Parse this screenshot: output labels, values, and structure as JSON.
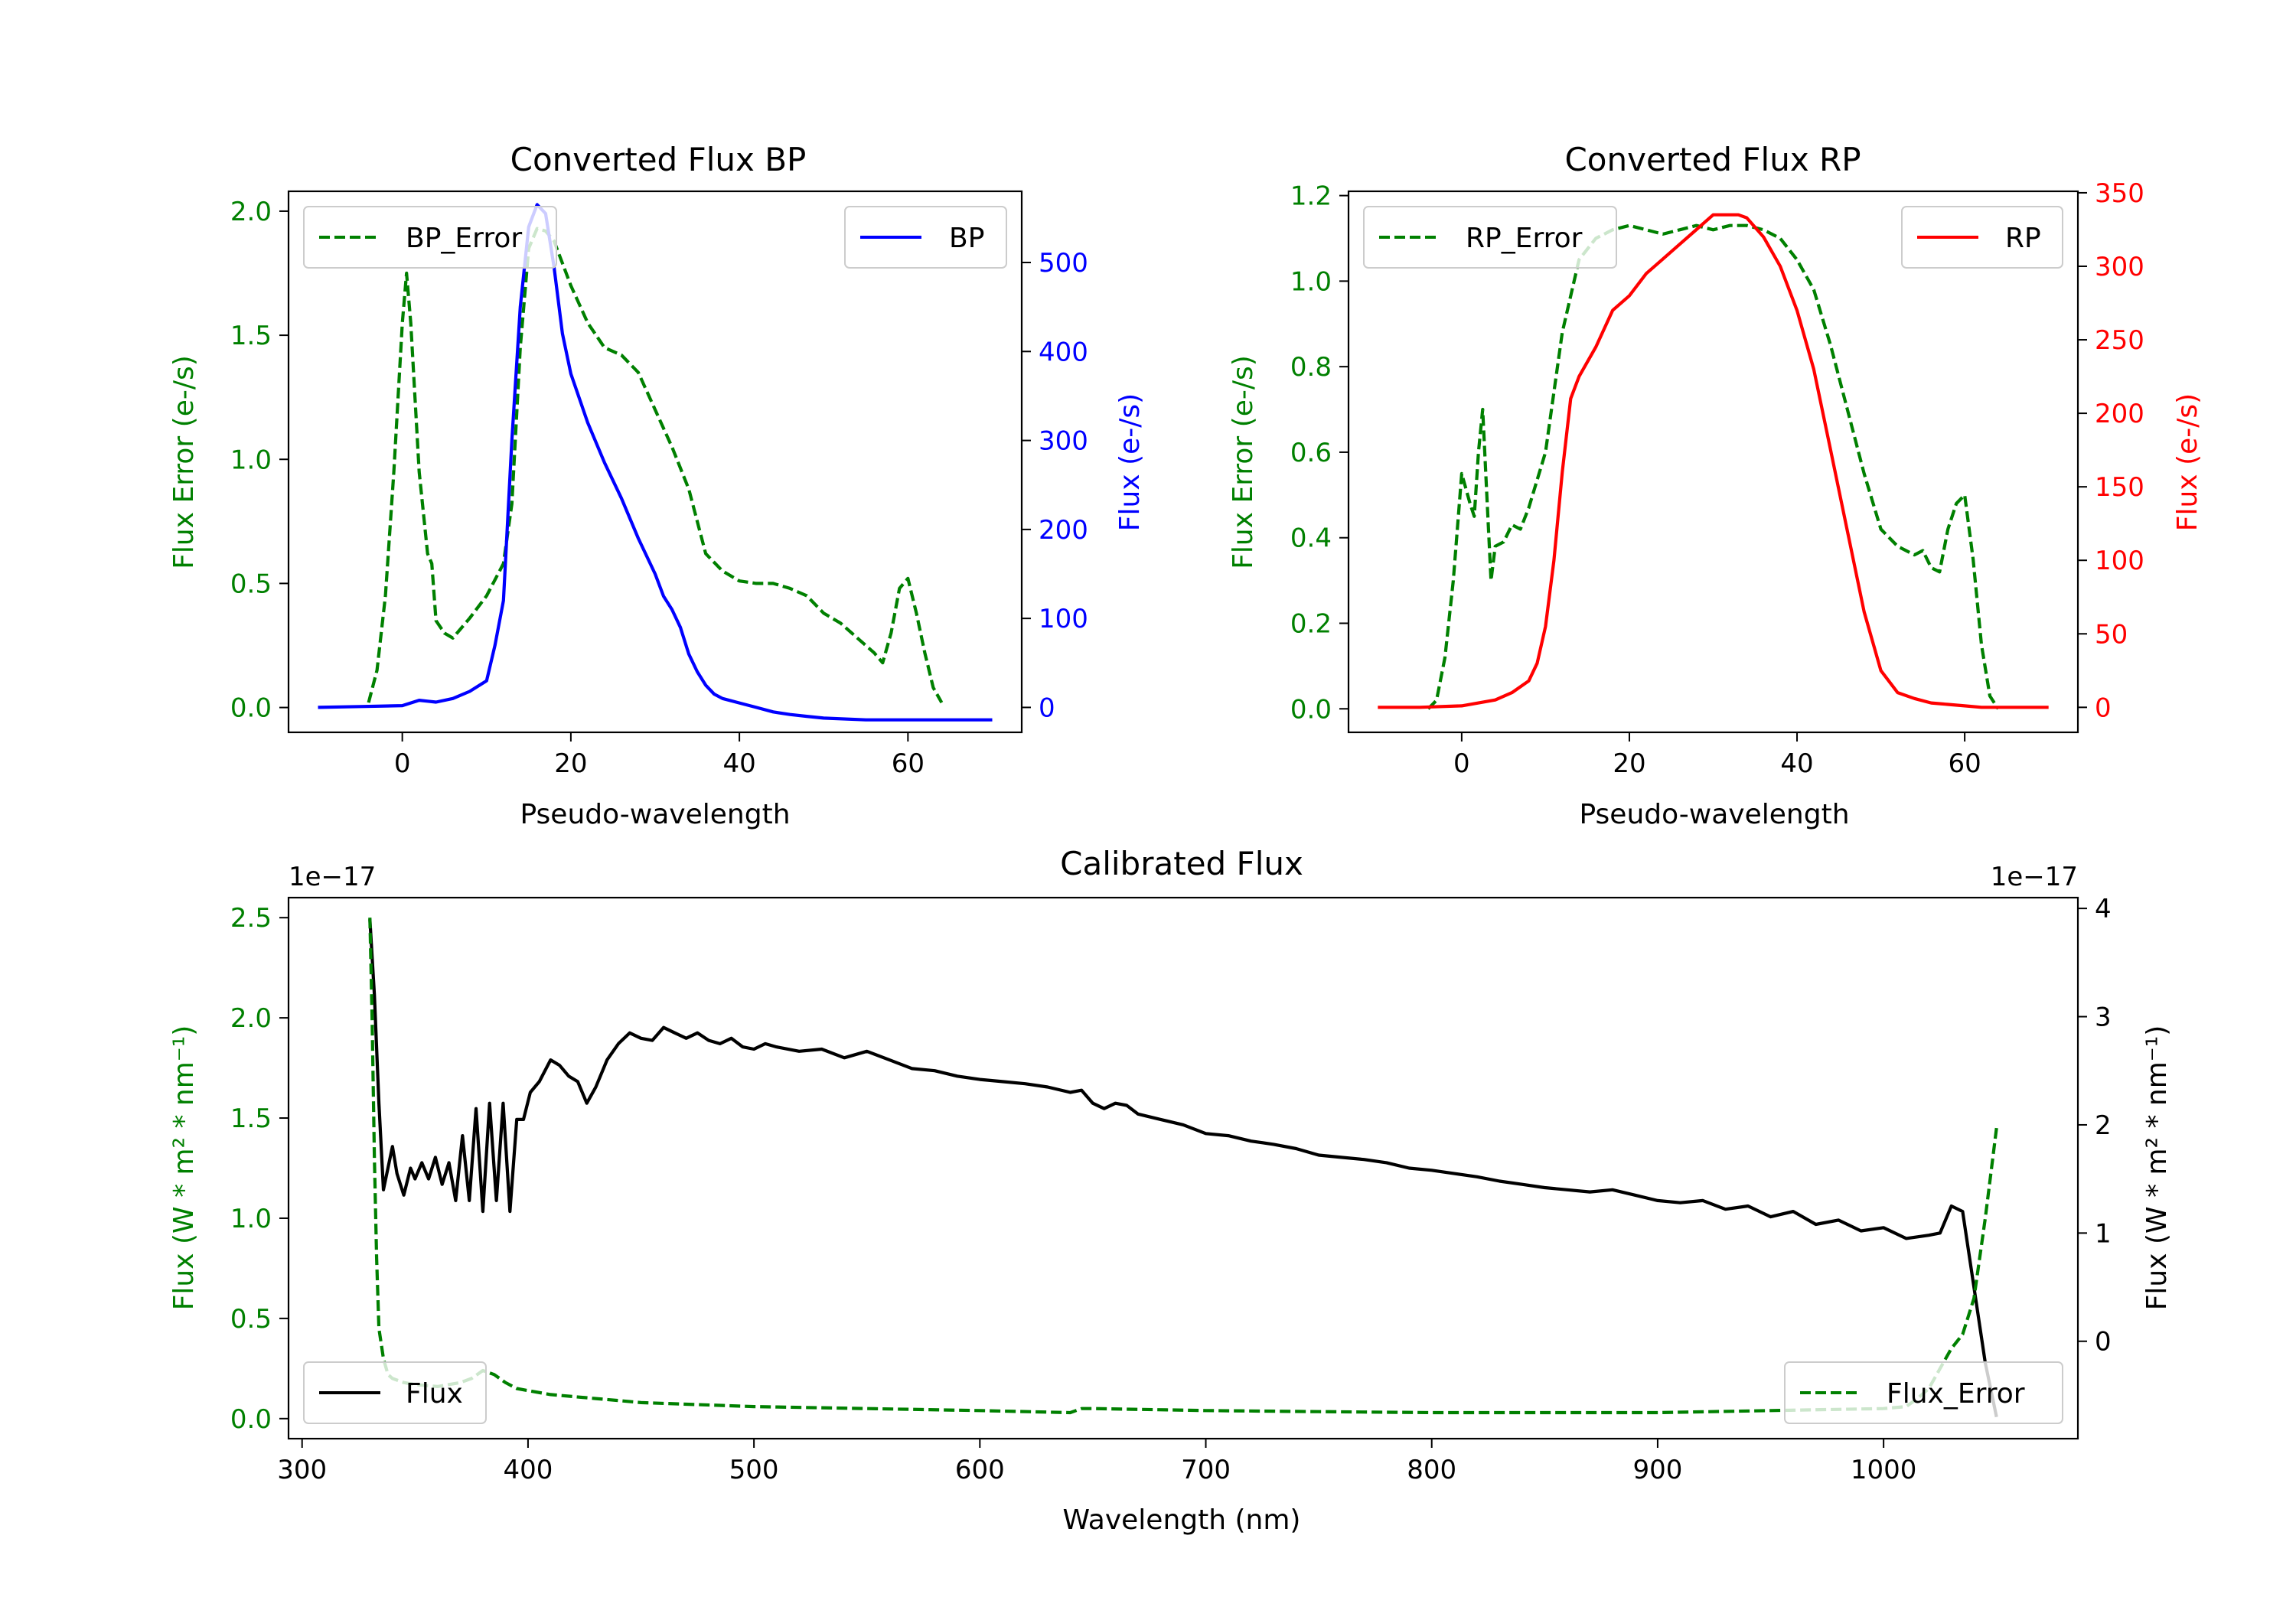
{
  "colors": {
    "green": "#008000",
    "blue": "#0000ff",
    "red": "#ff0000",
    "black": "#000000"
  },
  "chart_data": [
    {
      "id": "bp",
      "type": "line",
      "title": "Converted Flux BP",
      "xlabel": "Pseudo-wavelength",
      "ylabel_left": "Flux Error (e-/s)",
      "ylabel_right": "Flux (e-/s)",
      "xlim": [
        -13.5,
        73.5
      ],
      "ylim_left": [
        -0.1,
        2.08
      ],
      "ylim_right": [
        -28,
        580
      ],
      "xticks": [
        "0",
        "20",
        "40",
        "60"
      ],
      "yticks_left": [
        "0.0",
        "0.5",
        "1.0",
        "1.5",
        "2.0"
      ],
      "yticks_right": [
        "0",
        "100",
        "200",
        "300",
        "400",
        "500"
      ],
      "legend_left": "BP_Error",
      "legend_right": "BP",
      "series": [
        {
          "name": "BP_Error",
          "axis": "left",
          "style": "dashed",
          "color": "#008000",
          "x": [
            -4,
            -3,
            -2,
            -1,
            0,
            0.5,
            1,
            2,
            3,
            3.5,
            4,
            5,
            6,
            8,
            10,
            12,
            13,
            14,
            15,
            16,
            17,
            18,
            20,
            22,
            24,
            26,
            28,
            30,
            32,
            34,
            36,
            38,
            40,
            42,
            44,
            46,
            48,
            50,
            52,
            54,
            56,
            57,
            58,
            59,
            60,
            61,
            62,
            63,
            64
          ],
          "y": [
            0.02,
            0.15,
            0.45,
            0.95,
            1.55,
            1.75,
            1.55,
            0.95,
            0.62,
            0.58,
            0.35,
            0.3,
            0.28,
            0.36,
            0.45,
            0.58,
            0.82,
            1.45,
            1.85,
            1.93,
            1.92,
            1.88,
            1.7,
            1.55,
            1.45,
            1.42,
            1.35,
            1.2,
            1.05,
            0.88,
            0.62,
            0.55,
            0.51,
            0.5,
            0.5,
            0.48,
            0.45,
            0.38,
            0.34,
            0.28,
            0.22,
            0.18,
            0.3,
            0.48,
            0.52,
            0.38,
            0.22,
            0.08,
            0.02
          ]
        },
        {
          "name": "BP",
          "axis": "right",
          "style": "solid",
          "color": "#0000ff",
          "x": [
            -10,
            -5,
            0,
            1,
            2,
            3,
            4,
            6,
            8,
            10,
            11,
            12,
            13,
            14,
            15,
            16,
            17,
            18,
            19,
            20,
            22,
            24,
            26,
            28,
            30,
            31,
            32,
            33,
            34,
            35,
            36,
            37,
            38,
            40,
            42,
            44,
            46,
            48,
            50,
            55,
            60,
            65,
            70
          ],
          "y": [
            0,
            1,
            2,
            5,
            8,
            7,
            6,
            10,
            18,
            30,
            70,
            120,
            300,
            450,
            540,
            565,
            555,
            495,
            420,
            375,
            320,
            275,
            235,
            190,
            150,
            125,
            110,
            90,
            60,
            40,
            25,
            15,
            10,
            5,
            0,
            -5,
            -8,
            -10,
            -12,
            -14,
            -14,
            -14,
            -14
          ]
        }
      ]
    },
    {
      "id": "rp",
      "type": "line",
      "title": "Converted Flux RP",
      "xlabel": "Pseudo-wavelength",
      "ylabel_left": "Flux Error (e-/s)",
      "ylabel_right": "Flux (e-/s)",
      "xlim": [
        -13.5,
        73.5
      ],
      "ylim_left": [
        -0.055,
        1.21
      ],
      "ylim_right": [
        -17,
        351
      ],
      "xticks": [
        "0",
        "20",
        "40",
        "60"
      ],
      "yticks_left": [
        "0.0",
        "0.2",
        "0.4",
        "0.6",
        "0.8",
        "1.0",
        "1.2"
      ],
      "yticks_right": [
        "0",
        "50",
        "100",
        "150",
        "200",
        "250",
        "300",
        "350"
      ],
      "legend_left": "RP_Error",
      "legend_right": "RP",
      "series": [
        {
          "name": "RP_Error",
          "axis": "left",
          "style": "dashed",
          "color": "#008000",
          "x": [
            -4,
            -3,
            -2,
            -1,
            0,
            1,
            1.5,
            2,
            2.5,
            3,
            3.5,
            4,
            5,
            6,
            7,
            8,
            10,
            12,
            14,
            16,
            18,
            20,
            22,
            24,
            26,
            28,
            30,
            32,
            34,
            36,
            38,
            40,
            42,
            44,
            46,
            48,
            50,
            52,
            54,
            55,
            56,
            57,
            58,
            59,
            60,
            61,
            62,
            63,
            64
          ],
          "y": [
            0,
            0.02,
            0.12,
            0.3,
            0.55,
            0.48,
            0.45,
            0.6,
            0.7,
            0.5,
            0.3,
            0.38,
            0.39,
            0.43,
            0.42,
            0.47,
            0.6,
            0.88,
            1.05,
            1.1,
            1.12,
            1.13,
            1.12,
            1.11,
            1.12,
            1.13,
            1.12,
            1.13,
            1.13,
            1.12,
            1.1,
            1.05,
            0.98,
            0.85,
            0.7,
            0.55,
            0.42,
            0.38,
            0.36,
            0.37,
            0.33,
            0.32,
            0.42,
            0.48,
            0.5,
            0.35,
            0.15,
            0.03,
            0
          ]
        },
        {
          "name": "RP",
          "axis": "right",
          "style": "solid",
          "color": "#ff0000",
          "x": [
            -10,
            -5,
            0,
            2,
            4,
            6,
            8,
            9,
            10,
            11,
            12,
            13,
            14,
            16,
            18,
            20,
            22,
            24,
            26,
            28,
            30,
            32,
            33,
            34,
            36,
            38,
            40,
            42,
            44,
            46,
            48,
            50,
            52,
            54,
            56,
            58,
            60,
            62,
            65,
            70
          ],
          "y": [
            0,
            0,
            1,
            3,
            5,
            10,
            18,
            30,
            55,
            100,
            160,
            210,
            225,
            245,
            270,
            280,
            295,
            305,
            315,
            325,
            335,
            335,
            335,
            333,
            320,
            300,
            270,
            230,
            175,
            120,
            65,
            25,
            10,
            6,
            3,
            2,
            1,
            0,
            0,
            0
          ]
        }
      ]
    },
    {
      "id": "calibrated",
      "type": "line",
      "title": "Calibrated Flux",
      "xlabel": "Wavelength (nm)",
      "ylabel_left": "Flux (W * m² * nm⁻¹)",
      "ylabel_right": "Flux (W * m² * nm⁻¹)",
      "offset_left": "1e−17",
      "offset_right": "1e−17",
      "xlim": [
        294,
        1086
      ],
      "ylim_left": [
        -0.1,
        2.6
      ],
      "ylim_right": [
        -0.9,
        4.1
      ],
      "xticks": [
        "300",
        "400",
        "500",
        "600",
        "700",
        "800",
        "900",
        "1000"
      ],
      "yticks_left": [
        "0.0",
        "0.5",
        "1.0",
        "1.5",
        "2.0",
        "2.5"
      ],
      "yticks_right": [
        "0",
        "1",
        "2",
        "3",
        "4"
      ],
      "legend_left": "Flux",
      "legend_right": "Flux_Error",
      "series": [
        {
          "name": "Flux",
          "axis": "right",
          "style": "solid",
          "color": "#000000",
          "x": [
            330,
            332,
            334,
            336,
            338,
            340,
            342,
            345,
            348,
            350,
            353,
            356,
            359,
            362,
            365,
            368,
            371,
            374,
            377,
            380,
            383,
            386,
            389,
            392,
            395,
            398,
            401,
            405,
            410,
            414,
            418,
            422,
            426,
            430,
            435,
            440,
            445,
            450,
            455,
            460,
            465,
            470,
            475,
            480,
            485,
            490,
            495,
            500,
            505,
            510,
            520,
            530,
            540,
            550,
            560,
            570,
            580,
            590,
            600,
            610,
            620,
            630,
            640,
            645,
            650,
            655,
            660,
            665,
            670,
            680,
            690,
            700,
            710,
            720,
            730,
            740,
            750,
            760,
            770,
            780,
            790,
            800,
            810,
            820,
            830,
            840,
            850,
            860,
            870,
            880,
            890,
            900,
            910,
            920,
            930,
            940,
            950,
            960,
            970,
            980,
            990,
            1000,
            1010,
            1020,
            1025,
            1030,
            1035,
            1040,
            1045,
            1050
          ],
          "y": [
            3.9,
            3.2,
            2.2,
            1.4,
            1.6,
            1.8,
            1.55,
            1.35,
            1.6,
            1.5,
            1.65,
            1.5,
            1.7,
            1.45,
            1.65,
            1.3,
            1.9,
            1.3,
            2.15,
            1.2,
            2.2,
            1.3,
            2.2,
            1.2,
            2.05,
            2.05,
            2.3,
            2.4,
            2.6,
            2.55,
            2.45,
            2.4,
            2.2,
            2.35,
            2.6,
            2.75,
            2.85,
            2.8,
            2.78,
            2.9,
            2.85,
            2.8,
            2.85,
            2.78,
            2.75,
            2.8,
            2.72,
            2.7,
            2.75,
            2.72,
            2.68,
            2.7,
            2.62,
            2.68,
            2.6,
            2.52,
            2.5,
            2.45,
            2.42,
            2.4,
            2.38,
            2.35,
            2.3,
            2.32,
            2.2,
            2.15,
            2.2,
            2.18,
            2.1,
            2.05,
            2.0,
            1.92,
            1.9,
            1.85,
            1.82,
            1.78,
            1.72,
            1.7,
            1.68,
            1.65,
            1.6,
            1.58,
            1.55,
            1.52,
            1.48,
            1.45,
            1.42,
            1.4,
            1.38,
            1.4,
            1.35,
            1.3,
            1.28,
            1.3,
            1.22,
            1.25,
            1.15,
            1.2,
            1.08,
            1.12,
            1.02,
            1.05,
            0.95,
            0.98,
            1.0,
            1.25,
            1.2,
            0.5,
            -0.2,
            -0.7
          ]
        },
        {
          "name": "Flux_Error",
          "axis": "left",
          "style": "dashed",
          "color": "#008000",
          "x": [
            330,
            331,
            332,
            333,
            334,
            336,
            338,
            340,
            345,
            350,
            360,
            370,
            375,
            380,
            385,
            390,
            395,
            400,
            410,
            420,
            430,
            440,
            450,
            500,
            550,
            600,
            640,
            645,
            650,
            700,
            750,
            800,
            850,
            900,
            950,
            1000,
            1010,
            1015,
            1020,
            1025,
            1030,
            1035,
            1040,
            1045,
            1050
          ],
          "y": [
            2.5,
            2.0,
            1.3,
            0.8,
            0.45,
            0.3,
            0.22,
            0.2,
            0.18,
            0.17,
            0.16,
            0.18,
            0.2,
            0.24,
            0.22,
            0.18,
            0.15,
            0.14,
            0.12,
            0.11,
            0.1,
            0.09,
            0.08,
            0.06,
            0.05,
            0.04,
            0.03,
            0.05,
            0.05,
            0.04,
            0.035,
            0.03,
            0.03,
            0.03,
            0.04,
            0.05,
            0.06,
            0.1,
            0.15,
            0.25,
            0.35,
            0.42,
            0.6,
            1.0,
            1.45
          ]
        }
      ]
    }
  ]
}
